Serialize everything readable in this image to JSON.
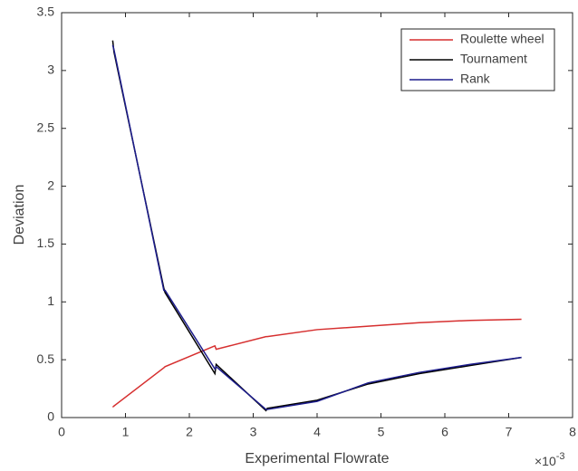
{
  "chart_data": {
    "type": "line",
    "x_label": "Experimental Flowrate",
    "y_label": "Deviation",
    "x_multiplier": {
      "base": "×10",
      "exponent": "-3"
    },
    "x": [
      0.8,
      0.82,
      1.6,
      1.62,
      2.4,
      2.42,
      3.2,
      3.22,
      4.0,
      4.8,
      5.6,
      6.4,
      7.2
    ],
    "series": [
      {
        "name": "Roulette wheel",
        "color": "#d62f2f",
        "values": [
          0.09,
          0.1,
          0.43,
          0.44,
          0.62,
          0.59,
          0.7,
          0.7,
          0.76,
          0.79,
          0.82,
          0.84,
          0.85
        ]
      },
      {
        "name": "Tournament",
        "color": "#000000",
        "values": [
          3.26,
          3.16,
          1.12,
          1.08,
          0.38,
          0.46,
          0.06,
          0.08,
          0.15,
          0.29,
          0.38,
          0.45,
          0.52
        ]
      },
      {
        "name": "Rank",
        "color": "#1c1c8c",
        "values": [
          3.22,
          3.18,
          1.1,
          1.1,
          0.42,
          0.44,
          0.07,
          0.07,
          0.14,
          0.3,
          0.39,
          0.46,
          0.52
        ]
      }
    ],
    "xlim": [
      0,
      8
    ],
    "xticks": [
      0,
      1,
      2,
      3,
      4,
      5,
      6,
      7,
      8
    ],
    "ylim": [
      0,
      3.5
    ],
    "yticks": [
      0,
      0.5,
      1,
      1.5,
      2,
      2.5,
      3,
      3.5
    ],
    "legend_position": "northeast"
  }
}
